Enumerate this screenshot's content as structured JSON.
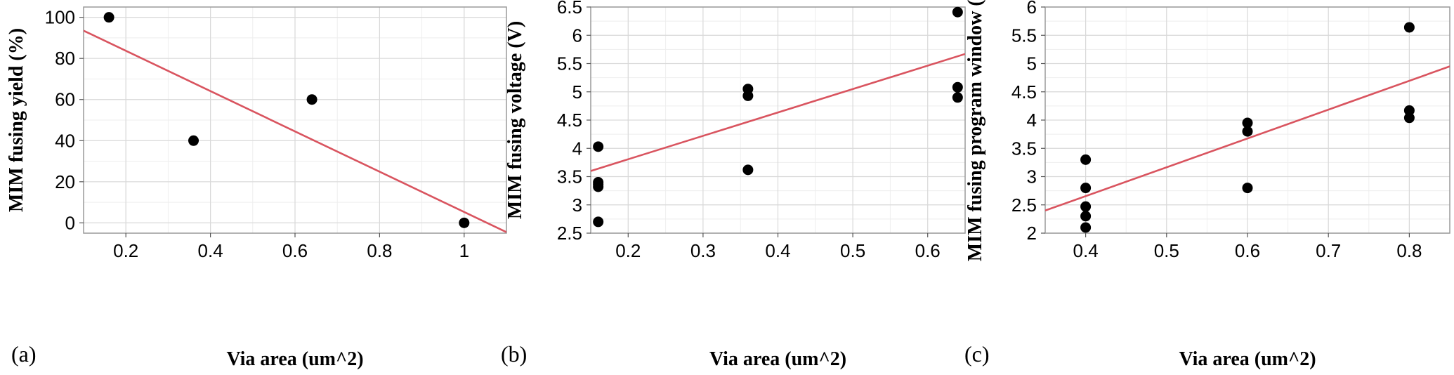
{
  "chart_data": [
    {
      "type": "scatter",
      "panel_label": "(a)",
      "xlabel": "Via area (um^2)",
      "ylabel": "MIM fusing yield (%)",
      "xlim": [
        0.1,
        1.1
      ],
      "ylim": [
        -5,
        105
      ],
      "xticks": [
        0.2,
        0.4,
        0.6,
        0.8,
        1
      ],
      "xtick_labels": [
        "0.2",
        "0.4",
        "0.6",
        "0.8",
        "1"
      ],
      "yticks": [
        0,
        20,
        40,
        60,
        80,
        100
      ],
      "ytick_labels": [
        "0",
        "20",
        "40",
        "60",
        "80",
        "100"
      ],
      "grid": true,
      "points": [
        {
          "x": 0.16,
          "y": 100
        },
        {
          "x": 0.36,
          "y": 40
        },
        {
          "x": 0.64,
          "y": 60
        },
        {
          "x": 1.0,
          "y": 0
        }
      ],
      "fit_line": {
        "x": [
          0.1,
          1.1
        ],
        "y": [
          93.5,
          -4.5
        ]
      },
      "fit_color": "#d9545f"
    },
    {
      "type": "scatter",
      "panel_label": "(b)",
      "xlabel": "Via area (um^2)",
      "ylabel": "MIM fusing voltage (V)",
      "xlim": [
        0.15,
        0.65
      ],
      "ylim": [
        2.5,
        6.5
      ],
      "xticks": [
        0.2,
        0.3,
        0.4,
        0.5,
        0.6
      ],
      "xtick_labels": [
        "0.2",
        "0.3",
        "0.4",
        "0.5",
        "0.6"
      ],
      "yticks": [
        2.5,
        3,
        3.5,
        4,
        4.5,
        5,
        5.5,
        6,
        6.5
      ],
      "ytick_labels": [
        "2.5",
        "3",
        "3.5",
        "4",
        "4.5",
        "5",
        "5.5",
        "6",
        "6.5"
      ],
      "grid": true,
      "points": [
        {
          "x": 0.16,
          "y": 4.03
        },
        {
          "x": 0.16,
          "y": 3.4
        },
        {
          "x": 0.16,
          "y": 3.36
        },
        {
          "x": 0.16,
          "y": 3.32
        },
        {
          "x": 0.16,
          "y": 2.7
        },
        {
          "x": 0.36,
          "y": 5.05
        },
        {
          "x": 0.36,
          "y": 4.93
        },
        {
          "x": 0.36,
          "y": 3.62
        },
        {
          "x": 0.64,
          "y": 6.41
        },
        {
          "x": 0.64,
          "y": 5.08
        },
        {
          "x": 0.64,
          "y": 4.9
        }
      ],
      "fit_line": {
        "x": [
          0.15,
          0.65
        ],
        "y": [
          3.6,
          5.67
        ]
      },
      "fit_color": "#d9545f"
    },
    {
      "type": "scatter",
      "panel_label": "(c)",
      "xlabel": "Via area (um^2)",
      "ylabel": "MIM fusing program window (V)",
      "xlim": [
        0.35,
        0.85
      ],
      "ylim": [
        2,
        6
      ],
      "xticks": [
        0.4,
        0.5,
        0.6,
        0.7,
        0.8
      ],
      "xtick_labels": [
        "0.4",
        "0.5",
        "0.6",
        "0.7",
        "0.8"
      ],
      "yticks": [
        2,
        2.5,
        3,
        3.5,
        4,
        4.5,
        5,
        5.5,
        6
      ],
      "ytick_labels": [
        "2",
        "2.5",
        "3",
        "3.5",
        "4",
        "4.5",
        "5",
        "5.5",
        "6"
      ],
      "grid": true,
      "points": [
        {
          "x": 0.4,
          "y": 3.3
        },
        {
          "x": 0.4,
          "y": 2.8
        },
        {
          "x": 0.4,
          "y": 2.47
        },
        {
          "x": 0.4,
          "y": 2.3
        },
        {
          "x": 0.4,
          "y": 2.1
        },
        {
          "x": 0.6,
          "y": 3.95
        },
        {
          "x": 0.6,
          "y": 3.8
        },
        {
          "x": 0.6,
          "y": 2.8
        },
        {
          "x": 0.8,
          "y": 5.64
        },
        {
          "x": 0.8,
          "y": 4.17
        },
        {
          "x": 0.8,
          "y": 4.04
        }
      ],
      "fit_line": {
        "x": [
          0.35,
          0.85
        ],
        "y": [
          2.4,
          4.95
        ]
      },
      "fit_color": "#d9545f"
    }
  ]
}
